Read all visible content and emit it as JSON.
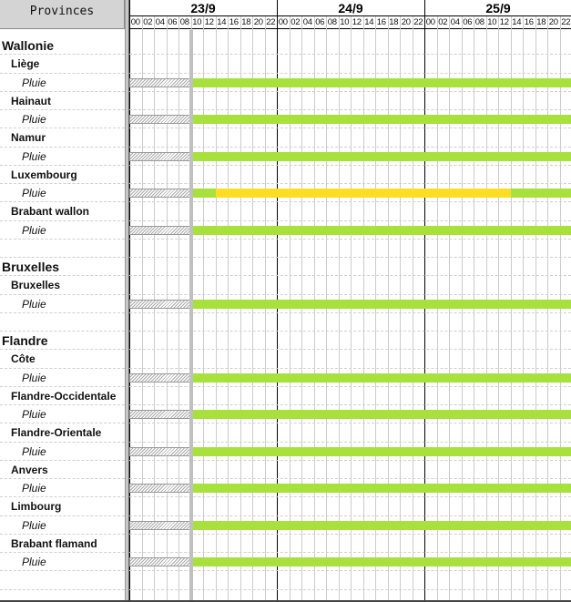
{
  "header": {
    "provinces_label": "Provinces"
  },
  "timeline": {
    "days": [
      "23/9",
      "24/9",
      "25/9"
    ],
    "hours": [
      "00",
      "02",
      "04",
      "06",
      "08",
      "10",
      "12",
      "14",
      "16",
      "18",
      "20",
      "22"
    ],
    "now": "23/9 10:00"
  },
  "colors": {
    "green": "#a8e03c",
    "yellow": "#ffdd22",
    "past": "hatched-gray"
  },
  "rows": [
    {
      "type": "group",
      "label": "Wallonie"
    },
    {
      "type": "province",
      "label": "Liège"
    },
    {
      "type": "phen",
      "label": "Pluie",
      "segments": [
        {
          "from": "23/9 10:00",
          "to": "26/9 00:00",
          "level": "green"
        }
      ]
    },
    {
      "type": "province",
      "label": "Hainaut"
    },
    {
      "type": "phen",
      "label": "Pluie",
      "segments": [
        {
          "from": "23/9 10:00",
          "to": "26/9 00:00",
          "level": "green"
        }
      ]
    },
    {
      "type": "province",
      "label": "Namur"
    },
    {
      "type": "phen",
      "label": "Pluie",
      "segments": [
        {
          "from": "23/9 10:00",
          "to": "26/9 00:00",
          "level": "green"
        }
      ]
    },
    {
      "type": "province",
      "label": "Luxembourg"
    },
    {
      "type": "phen",
      "label": "Pluie",
      "segments": [
        {
          "from": "23/9 10:00",
          "to": "23/9 14:00",
          "level": "green"
        },
        {
          "from": "23/9 14:00",
          "to": "25/9 14:00",
          "level": "yellow"
        },
        {
          "from": "25/9 14:00",
          "to": "26/9 00:00",
          "level": "green"
        }
      ]
    },
    {
      "type": "province",
      "label": "Brabant wallon"
    },
    {
      "type": "phen",
      "label": "Pluie",
      "segments": [
        {
          "from": "23/9 10:00",
          "to": "26/9 00:00",
          "level": "green"
        }
      ]
    },
    {
      "type": "blank",
      "label": ""
    },
    {
      "type": "group",
      "label": "Bruxelles"
    },
    {
      "type": "province",
      "label": "Bruxelles"
    },
    {
      "type": "phen",
      "label": "Pluie",
      "segments": [
        {
          "from": "23/9 10:00",
          "to": "26/9 00:00",
          "level": "green"
        }
      ]
    },
    {
      "type": "blank",
      "label": ""
    },
    {
      "type": "group",
      "label": "Flandre"
    },
    {
      "type": "province",
      "label": "Côte"
    },
    {
      "type": "phen",
      "label": "Pluie",
      "segments": [
        {
          "from": "23/9 10:00",
          "to": "26/9 00:00",
          "level": "green"
        }
      ]
    },
    {
      "type": "province",
      "label": "Flandre-Occidentale"
    },
    {
      "type": "phen",
      "label": "Pluie",
      "segments": [
        {
          "from": "23/9 10:00",
          "to": "26/9 00:00",
          "level": "green"
        }
      ]
    },
    {
      "type": "province",
      "label": "Flandre-Orientale"
    },
    {
      "type": "phen",
      "label": "Pluie",
      "segments": [
        {
          "from": "23/9 10:00",
          "to": "26/9 00:00",
          "level": "green"
        }
      ]
    },
    {
      "type": "province",
      "label": "Anvers"
    },
    {
      "type": "phen",
      "label": "Pluie",
      "segments": [
        {
          "from": "23/9 10:00",
          "to": "26/9 00:00",
          "level": "green"
        }
      ]
    },
    {
      "type": "province",
      "label": "Limbourg"
    },
    {
      "type": "phen",
      "label": "Pluie",
      "segments": [
        {
          "from": "23/9 10:00",
          "to": "26/9 00:00",
          "level": "green"
        }
      ]
    },
    {
      "type": "province",
      "label": "Brabant flamand"
    },
    {
      "type": "phen",
      "label": "Pluie",
      "segments": [
        {
          "from": "23/9 10:00",
          "to": "26/9 00:00",
          "level": "green"
        }
      ]
    },
    {
      "type": "blank",
      "label": ""
    }
  ]
}
